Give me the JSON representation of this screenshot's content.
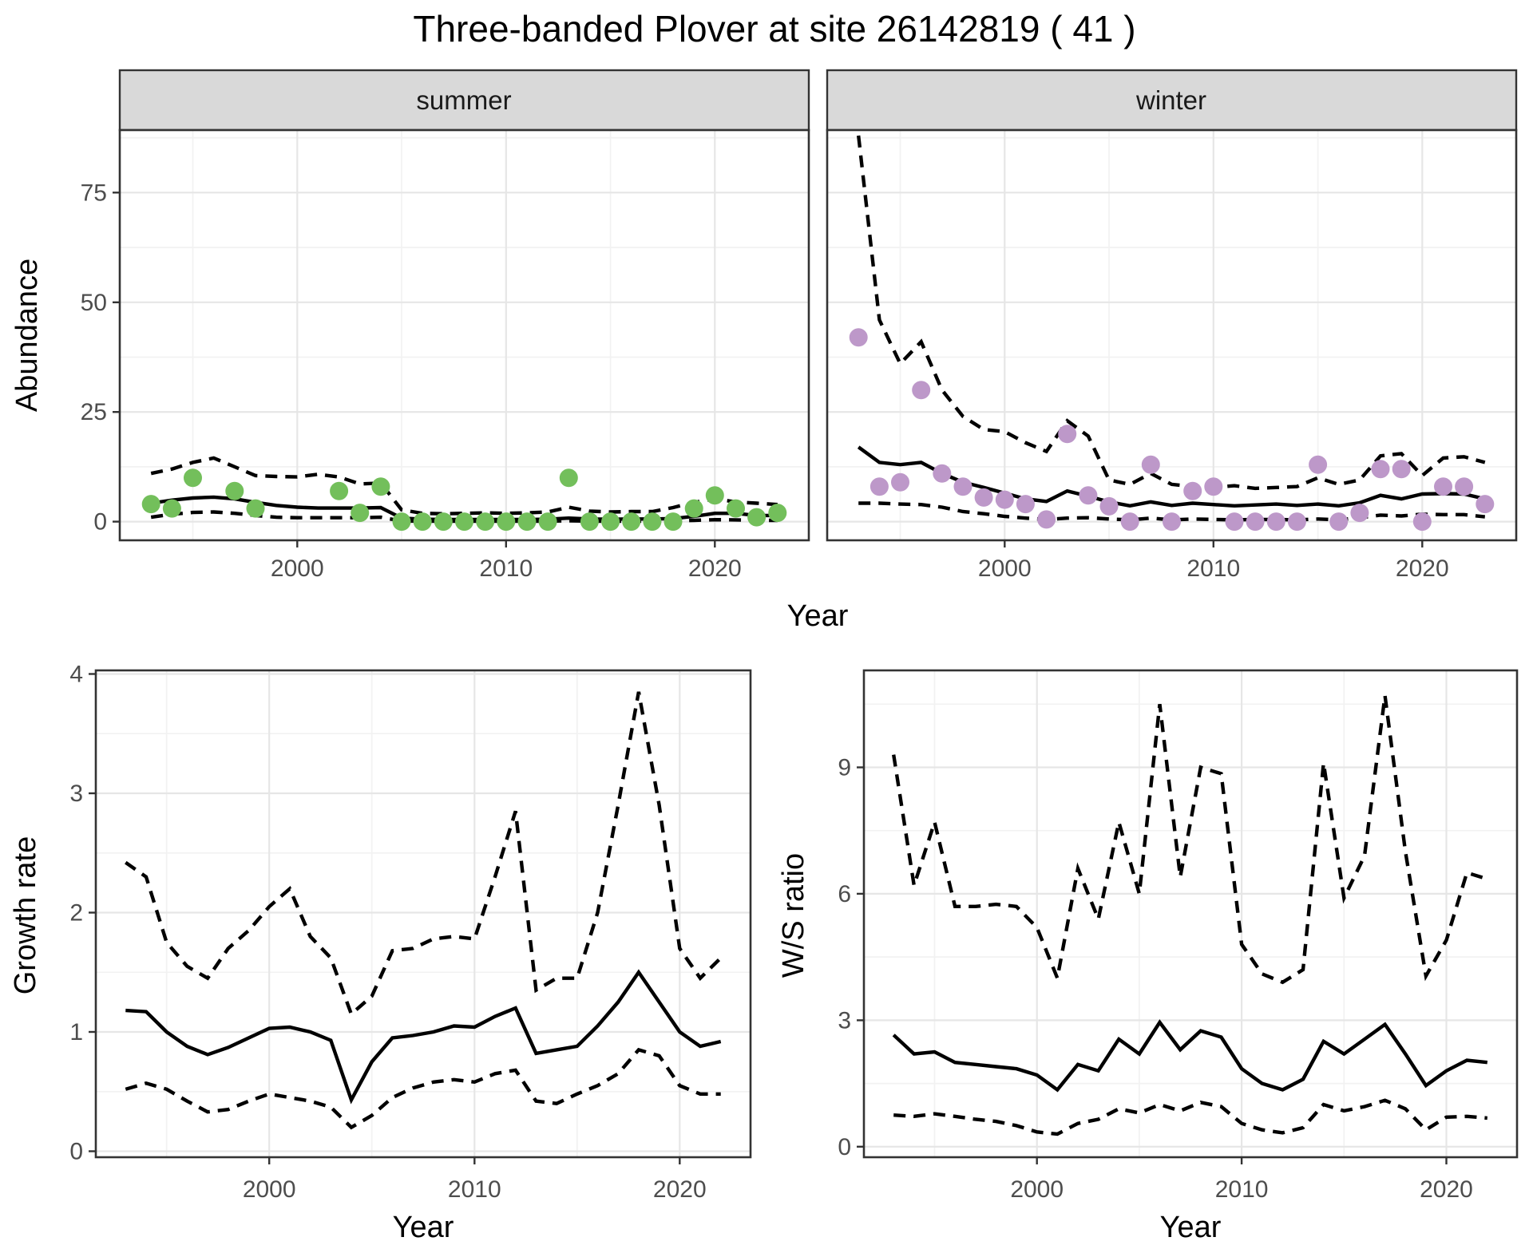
{
  "title": "Three-banded Plover at site 26142819 ( 41 )",
  "facets": [
    "summer",
    "winter"
  ],
  "axis_labels": {
    "abundance": "Abundance",
    "year": "Year",
    "growth": "Growth rate",
    "ws": "W/S ratio"
  },
  "colors": {
    "summer_point": "#73BF5B",
    "winter_point": "#BD98C9",
    "fit_line": "#000000",
    "ci_line": "#000000",
    "strip_bg": "#D9D9D9",
    "panel_border": "#333333",
    "grid_major": "#E6E6E6",
    "grid_minor": "#F2F2F2",
    "tick_text": "#4D4D4D"
  },
  "chart_data": [
    {
      "id": "abundance-summer",
      "type": "scatter",
      "facet": "summer",
      "xlabel": "Year",
      "ylabel": "Abundance",
      "xlim": [
        1991.5,
        2024.5
      ],
      "ylim": [
        -4.25,
        89.25
      ],
      "x_ticks": [
        2000,
        2010,
        2020
      ],
      "x_minor": [
        1995,
        2005,
        2015
      ],
      "y_ticks": [
        0,
        25,
        50,
        75
      ],
      "y_minor": [
        12.5,
        37.5,
        62.5,
        87.5
      ],
      "show_y_labels": true,
      "point_color": "#73BF5B",
      "points": [
        [
          1993,
          4
        ],
        [
          1994,
          3
        ],
        [
          1995,
          10
        ],
        [
          1997,
          7
        ],
        [
          1998,
          3
        ],
        [
          2002,
          7
        ],
        [
          2003,
          2
        ],
        [
          2004,
          8
        ],
        [
          2005,
          0
        ],
        [
          2006,
          0
        ],
        [
          2007,
          0
        ],
        [
          2008,
          0
        ],
        [
          2009,
          0
        ],
        [
          2010,
          0
        ],
        [
          2011,
          0
        ],
        [
          2012,
          0
        ],
        [
          2013,
          10
        ],
        [
          2014,
          0
        ],
        [
          2015,
          0
        ],
        [
          2016,
          0
        ],
        [
          2017,
          0
        ],
        [
          2018,
          0
        ],
        [
          2019,
          3
        ],
        [
          2020,
          6
        ],
        [
          2021,
          3
        ],
        [
          2022,
          1
        ],
        [
          2023,
          2
        ]
      ],
      "fit": {
        "start_year": 1993,
        "values": [
          4.2,
          4.9,
          5.4,
          5.6,
          5.2,
          4.4,
          3.7,
          3.3,
          3.1,
          3.1,
          3.1,
          3.2,
          0.8,
          0.55,
          0.5,
          0.5,
          0.5,
          0.5,
          0.5,
          0.55,
          0.8,
          0.6,
          0.55,
          0.6,
          0.6,
          0.7,
          1.2,
          1.9,
          1.9,
          1.4,
          1.4
        ]
      },
      "upper": {
        "start_year": 1993,
        "values": [
          11,
          12,
          13.5,
          14.5,
          12.5,
          10.5,
          10.3,
          10.2,
          10.8,
          10.2,
          8.6,
          8.8,
          2.7,
          1.9,
          1.8,
          1.9,
          2.0,
          1.9,
          2.0,
          2.2,
          3.3,
          2.4,
          2.2,
          2.3,
          2.3,
          3.2,
          4.4,
          5.2,
          4.5,
          4.2,
          3.9
        ]
      },
      "lower": {
        "start_year": 1993,
        "values": [
          1.0,
          1.7,
          2.1,
          2.2,
          1.9,
          1.4,
          1.0,
          0.9,
          0.9,
          0.9,
          0.9,
          1.0,
          0.15,
          0.1,
          0.1,
          0.1,
          0.1,
          0.1,
          0.1,
          0.1,
          0.2,
          0.1,
          0.1,
          0.1,
          0.1,
          0.15,
          0.3,
          0.45,
          0.4,
          0.3,
          0.3
        ]
      }
    },
    {
      "id": "abundance-winter",
      "type": "scatter",
      "facet": "winter",
      "xlabel": "Year",
      "ylabel": "Abundance",
      "xlim": [
        1991.5,
        2024.5
      ],
      "ylim": [
        -4.25,
        89.25
      ],
      "x_ticks": [
        2000,
        2010,
        2020
      ],
      "x_minor": [
        1995,
        2005,
        2015
      ],
      "y_ticks": [
        0,
        25,
        50,
        75
      ],
      "y_minor": [
        12.5,
        37.5,
        62.5,
        87.5
      ],
      "show_y_labels": false,
      "point_color": "#BD98C9",
      "points": [
        [
          1993,
          42
        ],
        [
          1994,
          8
        ],
        [
          1995,
          9
        ],
        [
          1996,
          30
        ],
        [
          1997,
          11
        ],
        [
          1998,
          8
        ],
        [
          1999,
          5.5
        ],
        [
          2000,
          5
        ],
        [
          2001,
          4
        ],
        [
          2002,
          0.5
        ],
        [
          2003,
          20
        ],
        [
          2004,
          6
        ],
        [
          2005,
          3.5
        ],
        [
          2006,
          0
        ],
        [
          2007,
          13
        ],
        [
          2008,
          0
        ],
        [
          2009,
          7
        ],
        [
          2010,
          8
        ],
        [
          2011,
          0
        ],
        [
          2012,
          0
        ],
        [
          2013,
          0
        ],
        [
          2014,
          0
        ],
        [
          2015,
          13
        ],
        [
          2016,
          0
        ],
        [
          2017,
          2
        ],
        [
          2018,
          12
        ],
        [
          2019,
          12
        ],
        [
          2020,
          0
        ],
        [
          2021,
          8
        ],
        [
          2022,
          8
        ],
        [
          2023,
          4
        ]
      ],
      "fit": {
        "start_year": 1993,
        "values": [
          17,
          13.5,
          13,
          13.5,
          11,
          9,
          7.8,
          6.5,
          5.2,
          4.6,
          7,
          5.8,
          4.5,
          3.6,
          4.5,
          3.7,
          4.2,
          3.9,
          3.6,
          3.8,
          4.0,
          3.7,
          4.0,
          3.6,
          4.3,
          6.0,
          5.2,
          6.3,
          6.4,
          6.3,
          5.2
        ]
      },
      "upper": {
        "start_year": 1993,
        "values": [
          88,
          46,
          36,
          41,
          30,
          24,
          21,
          20.5,
          18,
          16,
          23,
          19.5,
          9.5,
          8.5,
          11,
          8.5,
          8.0,
          7.8,
          8.2,
          7.6,
          7.8,
          8.0,
          10,
          8.5,
          9.5,
          15,
          15.5,
          10.5,
          14.5,
          14.8,
          13.5
        ]
      },
      "lower": {
        "start_year": 1993,
        "values": [
          4.2,
          4.2,
          4.0,
          3.9,
          3.3,
          2.3,
          1.8,
          1.2,
          0.8,
          0.5,
          0.8,
          0.9,
          0.6,
          0.4,
          0.8,
          0.4,
          0.6,
          0.5,
          0.4,
          0.5,
          0.5,
          0.4,
          0.6,
          0.4,
          0.9,
          1.5,
          1.3,
          1.7,
          1.6,
          1.6,
          1.1
        ]
      }
    },
    {
      "id": "growth-rate",
      "type": "line",
      "facet": null,
      "xlabel": "Year",
      "ylabel": "Growth rate",
      "xlim": [
        1991.55,
        2023.45
      ],
      "ylim": [
        -0.05,
        4.03
      ],
      "x_ticks": [
        2000,
        2010,
        2020
      ],
      "x_minor": [
        1995,
        2005,
        2015
      ],
      "y_ticks": [
        0,
        1,
        2,
        3,
        4
      ],
      "y_minor": [
        0.5,
        1.5,
        2.5,
        3.5
      ],
      "show_y_labels": true,
      "point_color": null,
      "points": [],
      "fit": {
        "start_year": 1993,
        "values": [
          1.18,
          1.17,
          1.0,
          0.88,
          0.81,
          0.87,
          0.95,
          1.03,
          1.04,
          1.0,
          0.93,
          0.43,
          0.75,
          0.95,
          0.97,
          1.0,
          1.05,
          1.04,
          1.13,
          1.2,
          0.82,
          0.85,
          0.88,
          1.05,
          1.25,
          1.5,
          1.25,
          1.0,
          0.88,
          0.92
        ]
      },
      "upper": {
        "start_year": 1993,
        "values": [
          2.42,
          2.3,
          1.75,
          1.55,
          1.45,
          1.7,
          1.85,
          2.05,
          2.2,
          1.8,
          1.62,
          1.15,
          1.3,
          1.68,
          1.7,
          1.78,
          1.8,
          1.78,
          2.3,
          2.85,
          1.35,
          1.45,
          1.45,
          2.0,
          2.9,
          3.85,
          2.9,
          1.7,
          1.45,
          1.62
        ]
      },
      "lower": {
        "start_year": 1993,
        "values": [
          0.52,
          0.57,
          0.52,
          0.42,
          0.33,
          0.35,
          0.42,
          0.48,
          0.45,
          0.42,
          0.37,
          0.2,
          0.3,
          0.45,
          0.53,
          0.58,
          0.6,
          0.58,
          0.65,
          0.68,
          0.42,
          0.4,
          0.48,
          0.55,
          0.65,
          0.85,
          0.8,
          0.55,
          0.48,
          0.48
        ]
      }
    },
    {
      "id": "ws-ratio",
      "type": "line",
      "facet": null,
      "xlabel": "Year",
      "ylabel": "W/S ratio",
      "xlim": [
        1991.55,
        2023.45
      ],
      "ylim": [
        -0.25,
        11.3
      ],
      "x_ticks": [
        2000,
        2010,
        2020
      ],
      "x_minor": [
        1995,
        2005,
        2015
      ],
      "y_ticks": [
        0,
        3,
        6,
        9
      ],
      "y_minor": [
        1.5,
        4.5,
        7.5,
        10.5
      ],
      "show_y_labels": true,
      "point_color": null,
      "points": [],
      "fit": {
        "start_year": 1993,
        "values": [
          2.65,
          2.2,
          2.25,
          2.0,
          1.95,
          1.9,
          1.85,
          1.7,
          1.35,
          1.95,
          1.8,
          2.55,
          2.2,
          2.95,
          2.3,
          2.75,
          2.6,
          1.85,
          1.5,
          1.35,
          1.6,
          2.5,
          2.2,
          2.55,
          2.9,
          2.2,
          1.45,
          1.8,
          2.05,
          2.0
        ]
      },
      "upper": {
        "start_year": 1993,
        "values": [
          9.3,
          6.2,
          7.7,
          5.7,
          5.7,
          5.75,
          5.7,
          5.2,
          4.0,
          6.6,
          5.4,
          7.7,
          6.0,
          10.5,
          6.4,
          9.0,
          8.85,
          4.8,
          4.1,
          3.9,
          4.2,
          9.1,
          5.9,
          6.9,
          10.7,
          7.0,
          4.05,
          4.9,
          6.5,
          6.35
        ]
      },
      "lower": {
        "start_year": 1993,
        "values": [
          0.75,
          0.72,
          0.78,
          0.72,
          0.65,
          0.6,
          0.5,
          0.35,
          0.3,
          0.55,
          0.65,
          0.9,
          0.8,
          1.0,
          0.85,
          1.05,
          0.95,
          0.55,
          0.4,
          0.33,
          0.45,
          1.0,
          0.85,
          0.95,
          1.1,
          0.9,
          0.4,
          0.7,
          0.72,
          0.68
        ]
      }
    }
  ]
}
